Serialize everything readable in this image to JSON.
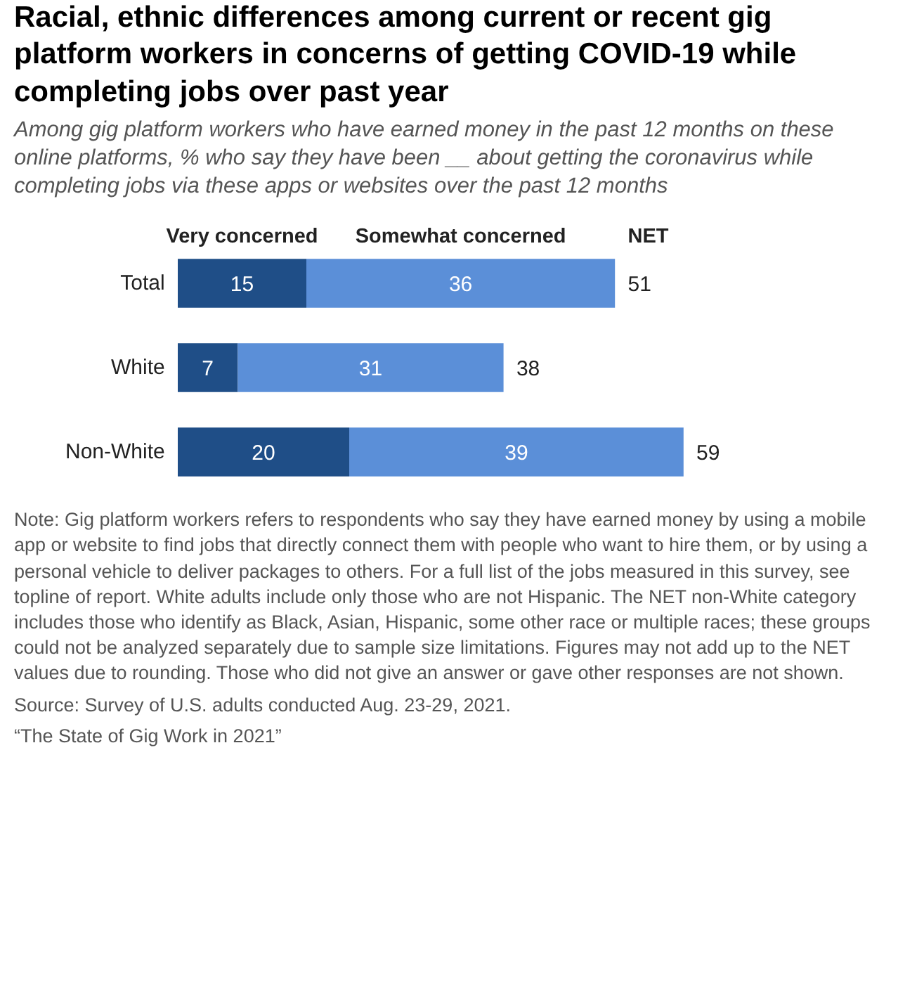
{
  "chart_data": {
    "type": "bar",
    "orientation": "horizontal",
    "stacked": true,
    "data_labels": true,
    "title": "Racial, ethnic differences among current or recent gig platform workers in concerns of getting COVID-19 while completing jobs over past year",
    "subtitle": "Among gig platform workers who have earned money in the past 12 months on these online platforms, % who say they have been __ about getting the coronavirus while completing jobs via these apps or websites over the past 12 months",
    "categories": [
      "Total",
      "White",
      "Non-White"
    ],
    "series": [
      {
        "name": "Very concerned",
        "color": "#1f4e87",
        "values": [
          15,
          7,
          20
        ]
      },
      {
        "name": "Somewhat concerned",
        "color": "#5b8fd8",
        "values": [
          36,
          31,
          39
        ]
      }
    ],
    "totals": [
      "51",
      "38",
      "59"
    ],
    "annotations": [
      "NET",
      "Note: Gig platform workers refers to respondents who say they have earned money by using a mobile app or website to find jobs that directly connect them with people who want to hire them, or by using a personal vehicle to deliver packages to others. For a full list of the jobs measured in this survey, see topline of report. White adults include only those who are not Hispanic. The NET non-White category includes those who identify as Black, Asian, Hispanic, some other race or multiple races; these groups could not be analyzed separately due to sample size limitations. Figures may not add up to the NET values due to rounding. Those who did not give an answer or gave other responses are not shown.",
      "Source: Survey of U.S. adults conducted Aug. 23-29, 2021.",
      "“The State of Gig Work in 2021”"
    ]
  }
}
